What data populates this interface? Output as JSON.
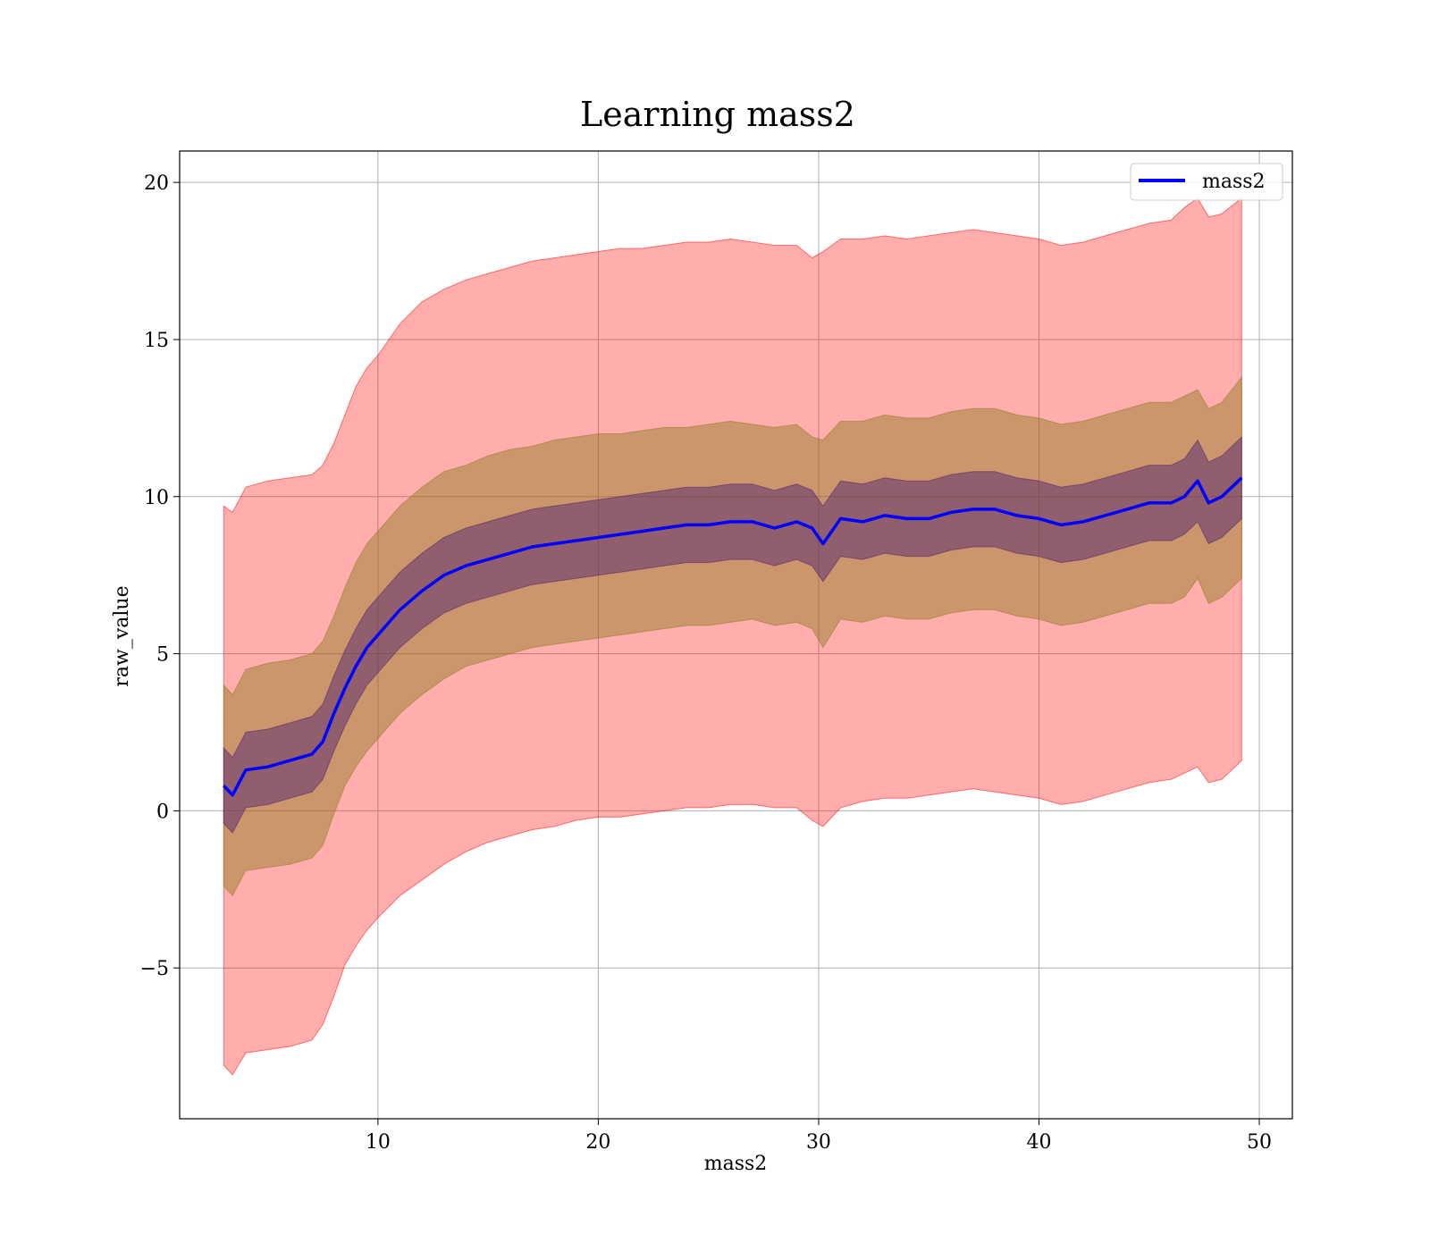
{
  "chart_data": {
    "type": "line",
    "title": "Learning mass2",
    "xlabel": "mass2",
    "ylabel": "raw_value",
    "xlim": [
      1,
      51.5
    ],
    "ylim": [
      -9.8,
      21
    ],
    "grid": true,
    "legend_position": "top-right",
    "x_ticks": [
      10,
      20,
      30,
      40,
      50
    ],
    "y_ticks": [
      -5,
      0,
      5,
      10,
      15,
      20
    ],
    "y_tick_labels": [
      "−5",
      "0",
      "5",
      "10",
      "15",
      "20"
    ],
    "x": [
      3,
      3.4,
      4,
      5,
      6,
      7,
      7.5,
      8,
      8.5,
      9,
      9.5,
      10,
      11,
      12,
      13,
      14,
      15,
      16,
      17,
      18,
      19,
      20,
      21,
      22,
      23,
      24,
      25,
      26,
      27,
      28,
      29,
      29.7,
      30.2,
      31,
      32,
      33,
      34,
      35,
      36,
      37,
      38,
      39,
      40,
      41,
      42,
      43,
      44,
      45,
      46,
      46.6,
      47.2,
      47.7,
      48.3,
      49.2
    ],
    "series": [
      {
        "name": "mass2",
        "color": "#0000ff",
        "values": [
          0.8,
          0.5,
          1.3,
          1.4,
          1.6,
          1.8,
          2.2,
          3.1,
          3.9,
          4.6,
          5.2,
          5.6,
          6.4,
          7.0,
          7.5,
          7.8,
          8.0,
          8.2,
          8.4,
          8.5,
          8.6,
          8.7,
          8.8,
          8.9,
          9.0,
          9.1,
          9.1,
          9.2,
          9.2,
          9.0,
          9.2,
          9.0,
          8.5,
          9.3,
          9.2,
          9.4,
          9.3,
          9.3,
          9.5,
          9.6,
          9.6,
          9.4,
          9.3,
          9.1,
          9.2,
          9.4,
          9.6,
          9.8,
          9.8,
          10.0,
          10.5,
          9.8,
          10.0,
          10.6
        ]
      }
    ],
    "bands": [
      {
        "color": "#ff0000",
        "opacity": 0.32,
        "upper": [
          9.7,
          9.5,
          10.3,
          10.5,
          10.6,
          10.7,
          11.0,
          11.7,
          12.6,
          13.5,
          14.1,
          14.5,
          15.5,
          16.2,
          16.6,
          16.9,
          17.1,
          17.3,
          17.5,
          17.6,
          17.7,
          17.8,
          17.9,
          17.9,
          18.0,
          18.1,
          18.1,
          18.2,
          18.1,
          18.0,
          18.0,
          17.6,
          17.8,
          18.2,
          18.2,
          18.3,
          18.2,
          18.3,
          18.4,
          18.5,
          18.4,
          18.3,
          18.2,
          18.0,
          18.1,
          18.3,
          18.5,
          18.7,
          18.8,
          19.2,
          19.5,
          18.9,
          19.0,
          19.5
        ],
        "lower": [
          -8.1,
          -8.4,
          -7.7,
          -7.6,
          -7.5,
          -7.3,
          -6.8,
          -5.9,
          -4.9,
          -4.3,
          -3.8,
          -3.4,
          -2.7,
          -2.2,
          -1.7,
          -1.3,
          -1.0,
          -0.8,
          -0.6,
          -0.5,
          -0.3,
          -0.2,
          -0.2,
          -0.1,
          0.0,
          0.1,
          0.1,
          0.2,
          0.2,
          0.1,
          0.1,
          -0.3,
          -0.5,
          0.1,
          0.3,
          0.4,
          0.4,
          0.5,
          0.6,
          0.7,
          0.6,
          0.5,
          0.4,
          0.2,
          0.3,
          0.5,
          0.7,
          0.9,
          1.0,
          1.2,
          1.4,
          0.9,
          1.0,
          1.6
        ]
      },
      {
        "color": "#8b7a1c",
        "opacity": 0.45,
        "upper": [
          4.0,
          3.7,
          4.5,
          4.7,
          4.8,
          5.0,
          5.4,
          6.2,
          7.1,
          7.9,
          8.5,
          8.9,
          9.7,
          10.3,
          10.8,
          11.0,
          11.3,
          11.5,
          11.6,
          11.8,
          11.9,
          12.0,
          12.0,
          12.1,
          12.2,
          12.2,
          12.3,
          12.4,
          12.3,
          12.2,
          12.3,
          11.9,
          11.8,
          12.4,
          12.4,
          12.6,
          12.5,
          12.5,
          12.7,
          12.8,
          12.8,
          12.6,
          12.5,
          12.3,
          12.4,
          12.6,
          12.8,
          13.0,
          13.0,
          13.2,
          13.4,
          12.8,
          13.0,
          13.8
        ],
        "lower": [
          -2.4,
          -2.7,
          -1.9,
          -1.8,
          -1.7,
          -1.5,
          -1.1,
          -0.1,
          0.8,
          1.4,
          1.9,
          2.3,
          3.1,
          3.7,
          4.2,
          4.6,
          4.8,
          5.0,
          5.2,
          5.3,
          5.4,
          5.5,
          5.6,
          5.7,
          5.8,
          5.9,
          5.9,
          6.0,
          6.1,
          5.9,
          6.0,
          5.8,
          5.2,
          6.1,
          6.0,
          6.2,
          6.1,
          6.1,
          6.3,
          6.4,
          6.4,
          6.2,
          6.1,
          5.9,
          6.0,
          6.2,
          6.4,
          6.6,
          6.6,
          6.8,
          7.4,
          6.6,
          6.8,
          7.4
        ]
      },
      {
        "color": "#4b1a6e",
        "opacity": 0.45,
        "upper": [
          2.0,
          1.7,
          2.5,
          2.6,
          2.8,
          3.0,
          3.4,
          4.3,
          5.1,
          5.8,
          6.4,
          6.8,
          7.6,
          8.2,
          8.7,
          9.0,
          9.2,
          9.4,
          9.6,
          9.7,
          9.8,
          9.9,
          10.0,
          10.1,
          10.2,
          10.3,
          10.3,
          10.4,
          10.4,
          10.2,
          10.4,
          10.2,
          9.7,
          10.5,
          10.4,
          10.6,
          10.5,
          10.5,
          10.7,
          10.8,
          10.8,
          10.6,
          10.5,
          10.3,
          10.4,
          10.6,
          10.8,
          11.0,
          11.0,
          11.2,
          11.8,
          11.1,
          11.3,
          11.9
        ],
        "lower": [
          -0.4,
          -0.7,
          0.1,
          0.2,
          0.4,
          0.6,
          1.0,
          1.9,
          2.7,
          3.4,
          4.0,
          4.4,
          5.2,
          5.8,
          6.3,
          6.6,
          6.8,
          7.0,
          7.2,
          7.3,
          7.4,
          7.5,
          7.6,
          7.7,
          7.8,
          7.9,
          7.9,
          8.0,
          8.0,
          7.8,
          8.0,
          7.8,
          7.3,
          8.1,
          8.0,
          8.2,
          8.1,
          8.1,
          8.3,
          8.4,
          8.4,
          8.2,
          8.1,
          7.9,
          8.0,
          8.2,
          8.4,
          8.6,
          8.6,
          8.8,
          9.2,
          8.5,
          8.7,
          9.3
        ]
      }
    ]
  }
}
